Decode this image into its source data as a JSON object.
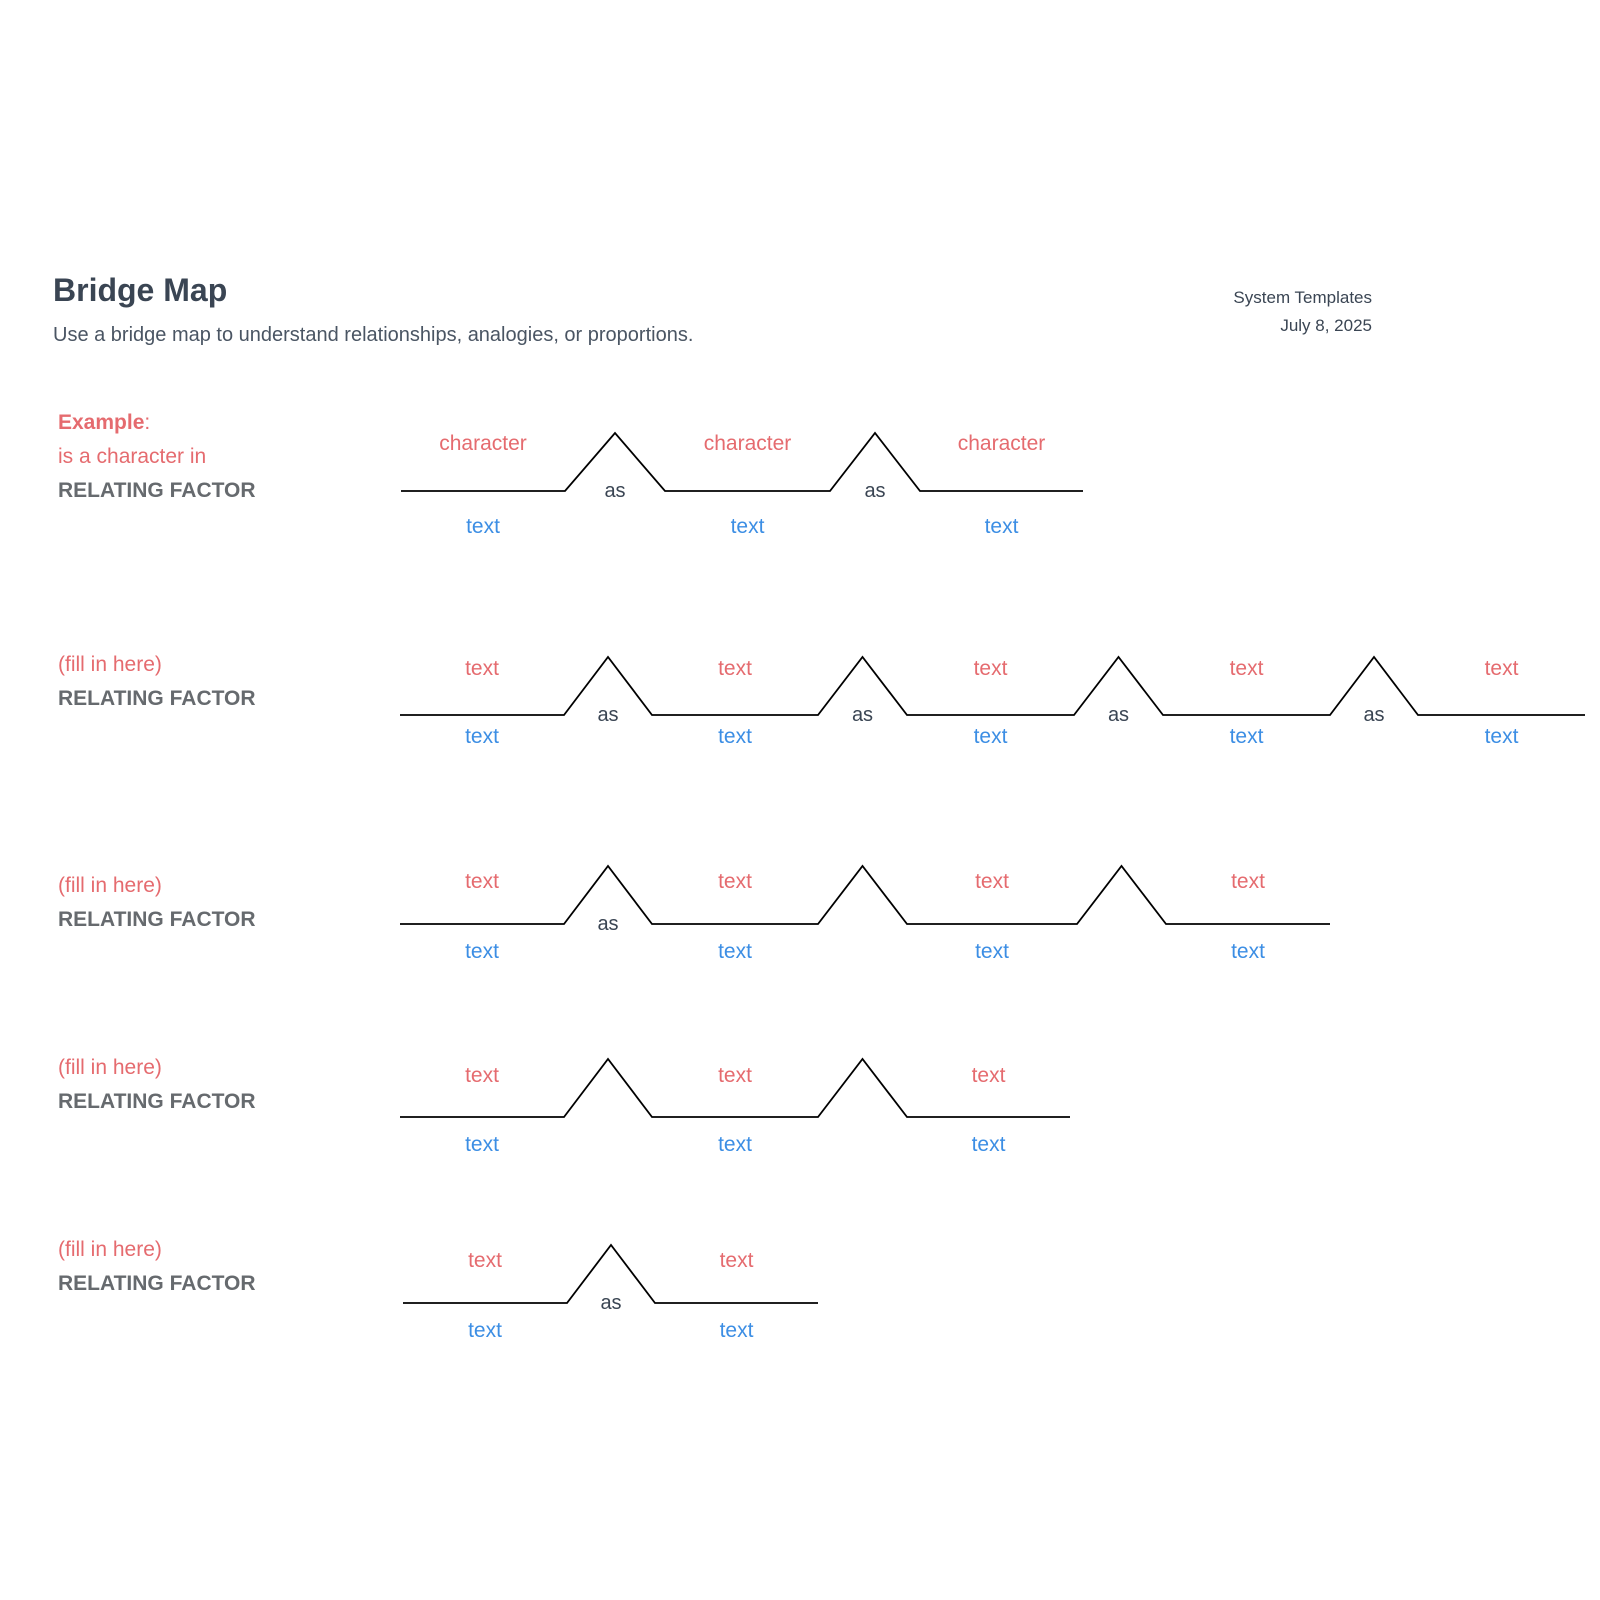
{
  "header": {
    "title": "Bridge Map",
    "subtitle": "Use a bridge map to understand relationships, analogies, or proportions.",
    "source": "System Templates",
    "date": "July 8, 2025"
  },
  "colors": {
    "top_text": "#e56b6f",
    "bottom_text": "#3c8ee4",
    "connector_text": "#3a4553",
    "line": "#000000",
    "title": "#3a4553",
    "factor": "#666a6e"
  },
  "rows": [
    {
      "lead_bold": "Example",
      "lead_suffix": ":",
      "lead_line2": "is a character in",
      "factor": "RELATING FACTOR",
      "pairs": [
        {
          "top": "character",
          "bottom": "text"
        },
        {
          "top": "character",
          "bottom": "text"
        },
        {
          "top": "character",
          "bottom": "text"
        }
      ],
      "connectors": [
        "as",
        "as"
      ]
    },
    {
      "lead": "(fill in here)",
      "factor": "RELATING FACTOR",
      "pairs": [
        {
          "top": "text",
          "bottom": "text"
        },
        {
          "top": "text",
          "bottom": "text"
        },
        {
          "top": "text",
          "bottom": "text"
        },
        {
          "top": "text",
          "bottom": "text"
        },
        {
          "top": "text",
          "bottom": "text"
        }
      ],
      "connectors": [
        "as",
        "as",
        "as",
        "as"
      ]
    },
    {
      "lead": "(fill in here)",
      "factor": "RELATING FACTOR",
      "pairs": [
        {
          "top": "text",
          "bottom": "text"
        },
        {
          "top": "text",
          "bottom": "text"
        },
        {
          "top": "text",
          "bottom": "text"
        },
        {
          "top": "text",
          "bottom": "text"
        }
      ],
      "connectors": [
        "as",
        "",
        ""
      ]
    },
    {
      "lead": "(fill in here)",
      "factor": "RELATING FACTOR",
      "pairs": [
        {
          "top": "text",
          "bottom": "text"
        },
        {
          "top": "text",
          "bottom": "text"
        },
        {
          "top": "text",
          "bottom": "text"
        }
      ],
      "connectors": [
        "",
        ""
      ]
    },
    {
      "lead": "(fill in here)",
      "factor": "RELATING FACTOR",
      "pairs": [
        {
          "top": "text",
          "bottom": "text"
        },
        {
          "top": "text",
          "bottom": "text"
        }
      ],
      "connectors": [
        "as"
      ]
    }
  ]
}
